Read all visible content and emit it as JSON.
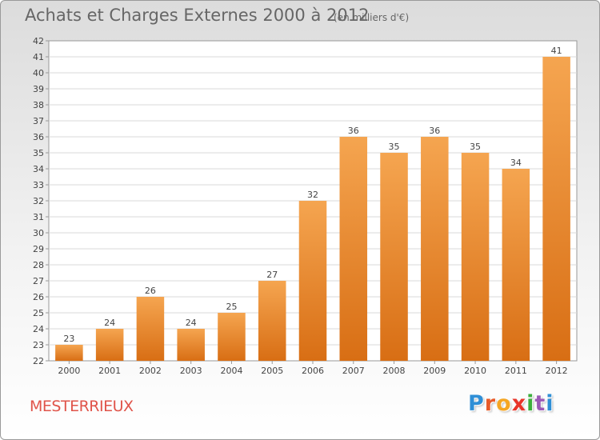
{
  "header": {
    "title": "Achats et Charges Externes 2000 à 2012",
    "subtitle": "(en milliers d'€)"
  },
  "footer": {
    "commune": "MESTERRIEUX",
    "brand_letters": [
      {
        "char": "P",
        "color": "#2f8fd6"
      },
      {
        "char": "r",
        "color": "#e85a28"
      },
      {
        "char": "o",
        "color": "#f5a623"
      },
      {
        "char": "x",
        "color": "#e8352a"
      },
      {
        "char": "i",
        "color": "#3cae3c"
      },
      {
        "char": "t",
        "color": "#9b59b6"
      },
      {
        "char": "i",
        "color": "#2f8fd6"
      }
    ]
  },
  "colors": {
    "bar_top": "#f5a550",
    "bar_bottom": "#d86e14",
    "grid": "#d9d9d9",
    "axis": "#999999",
    "text": "#444444"
  },
  "chart_data": {
    "type": "bar",
    "categories": [
      "2000",
      "2001",
      "2002",
      "2003",
      "2004",
      "2005",
      "2006",
      "2007",
      "2008",
      "2009",
      "2010",
      "2011",
      "2012"
    ],
    "values": [
      23,
      24,
      26,
      24,
      25,
      27,
      32,
      36,
      35,
      36,
      35,
      34,
      41
    ],
    "data_labels": [
      "23",
      "24",
      "26",
      "24",
      "25",
      "27",
      "32",
      "36",
      "35",
      "36",
      "35",
      "34",
      "41"
    ],
    "y_ticks": [
      "22",
      "23",
      "24",
      "25",
      "26",
      "27",
      "28",
      "29",
      "30",
      "31",
      "32",
      "33",
      "34",
      "35",
      "36",
      "37",
      "38",
      "39",
      "40",
      "41",
      "42"
    ],
    "ylim": [
      22,
      42
    ],
    "grid": true,
    "legend": "none"
  }
}
